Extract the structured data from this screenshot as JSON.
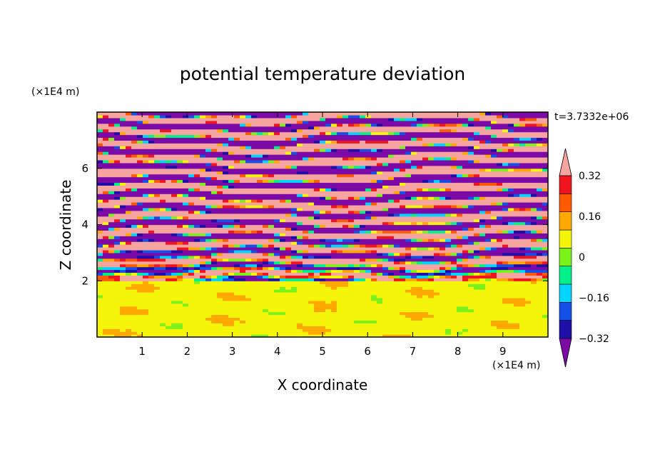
{
  "chart_data": {
    "type": "heatmap",
    "title": "potential temperature deviation",
    "xlabel": "X coordinate",
    "ylabel": "Z coordinate",
    "x_unit": "(×1E4 m)",
    "y_unit": "(×1E4 m)",
    "time_label": "t=3.7332e+06",
    "xlim": [
      0,
      10
    ],
    "ylim": [
      0,
      8
    ],
    "x_ticks": [
      1,
      2,
      3,
      4,
      5,
      6,
      7,
      8,
      9
    ],
    "y_ticks": [
      2,
      4,
      6
    ],
    "colorbar": {
      "levels": [
        -0.4,
        -0.32,
        -0.24,
        -0.16,
        -0.08,
        0,
        0.08,
        0.16,
        0.24,
        0.32,
        0.4
      ],
      "colors": [
        "#7b0aa6",
        "#1d0fa8",
        "#1450e6",
        "#00d4ff",
        "#00f08a",
        "#7cf21c",
        "#f5f50a",
        "#ffa800",
        "#ff5a00",
        "#f0141e",
        "#f5a4a0"
      ],
      "under_color": "#7b0aa6",
      "over_color": "#f5a4a0",
      "tick_labels": [
        "0.32",
        "0.16",
        "0",
        "−0.16",
        "−0.32"
      ],
      "tick_values": [
        0.32,
        0.16,
        0,
        -0.16,
        -0.32
      ]
    },
    "regions": {
      "lower_layer": {
        "z_range": [
          0,
          2
        ],
        "dominant_values": [
          0,
          0.08
        ]
      },
      "upper_layer": {
        "z_range": [
          2,
          8
        ],
        "pattern": "horizontal bands alternating between below -0.4 and above 0.4"
      }
    }
  }
}
